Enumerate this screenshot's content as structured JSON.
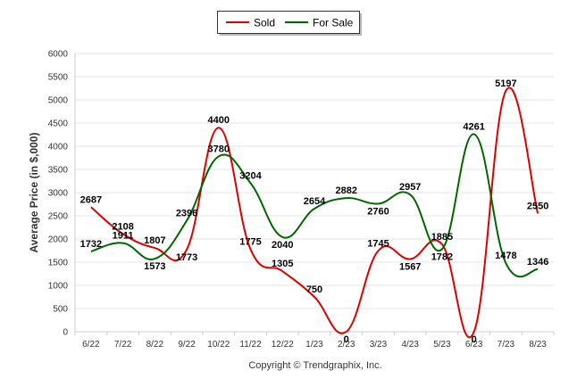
{
  "chart_data": {
    "type": "line",
    "ylabel": "Average Price (in $,000)",
    "ylim": [
      0,
      6000
    ],
    "y_ticks": [
      0,
      500,
      1000,
      1500,
      2000,
      2500,
      3000,
      3500,
      4000,
      4500,
      5000,
      5500,
      6000
    ],
    "categories": [
      "6/22",
      "7/22",
      "8/22",
      "9/22",
      "10/22",
      "11/22",
      "12/22",
      "1/23",
      "2/23",
      "3/23",
      "4/23",
      "5/23",
      "6/23",
      "7/23",
      "8/23"
    ],
    "series": [
      {
        "name": "Sold",
        "color": "#dd0000",
        "values": [
          2687,
          2108,
          1807,
          1773,
          4400,
          1775,
          1305,
          750,
          0,
          1745,
          1567,
          1885,
          0,
          5197,
          2550
        ]
      },
      {
        "name": "For Sale",
        "color": "#006600",
        "values": [
          1732,
          1911,
          1573,
          2396,
          3780,
          3204,
          2040,
          2654,
          2882,
          2760,
          2957,
          1782,
          4261,
          1478,
          1346
        ]
      }
    ],
    "legend_position": "top-center",
    "grid": true
  },
  "footer": {
    "credit": "Copyright © Trendgraphix, Inc."
  }
}
